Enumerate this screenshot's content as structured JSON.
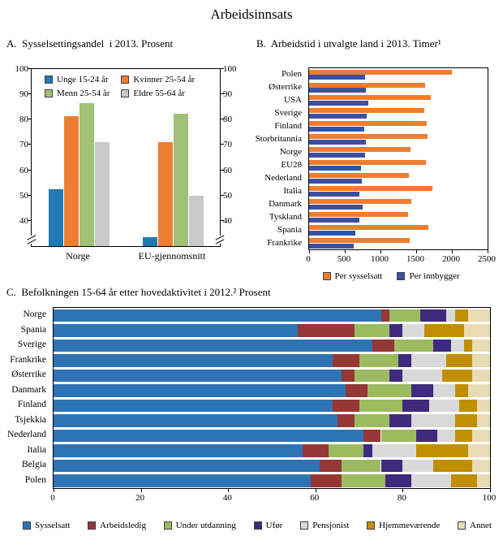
{
  "figure": {
    "title": "Arbeidsinnsats"
  },
  "chart_data": [
    {
      "id": "A",
      "type": "bar",
      "title": "A.  Sysselsettingsandel  i 2013. Prosent",
      "categories": [
        "Norge",
        "EU-gjennomsnitt"
      ],
      "series": [
        {
          "name": "Unge 15-24 år",
          "color": "#1F7AB6",
          "values": [
            52.5,
            33.5
          ]
        },
        {
          "name": "Kvinner 25-54 år",
          "color": "#ED7D31",
          "values": [
            81.5,
            71.0
          ]
        },
        {
          "name": "Menn 25-54 år",
          "color": "#A1C176",
          "values": [
            86.5,
            82.5
          ]
        },
        {
          "name": "Eldre 55-64 år",
          "color": "#C9C9C9",
          "values": [
            71.0,
            50.0
          ]
        }
      ],
      "ylim": [
        30,
        100
      ],
      "yticks": [
        40,
        50,
        60,
        70,
        80,
        90,
        100
      ],
      "axis_break": true,
      "grid": false,
      "legend_position": "inside-top"
    },
    {
      "id": "B",
      "type": "hbar",
      "title": "B.  Arbeidstid i utvalgte land i 2013. Timer¹",
      "categories": [
        "Polen",
        "Østerrike",
        "USA",
        "Sverige",
        "Finland",
        "Storbritannia",
        "Norge",
        "EU28",
        "Nederland",
        "Italia",
        "Danmark",
        "Tyskland",
        "Spania",
        "Frankrike"
      ],
      "series": [
        {
          "name": "Per sysselsatt",
          "color": "#ED7D31",
          "values": [
            2000,
            1630,
            1710,
            1610,
            1650,
            1660,
            1420,
            1640,
            1400,
            1730,
            1430,
            1390,
            1670,
            1410
          ]
        },
        {
          "name": "Per innbygger",
          "color": "#3C4FA1",
          "values": [
            780,
            790,
            830,
            810,
            770,
            800,
            780,
            730,
            740,
            700,
            750,
            710,
            650,
            630
          ]
        }
      ],
      "xlim": [
        0,
        2500
      ],
      "xticks": [
        0,
        500,
        1000,
        1500,
        2000,
        2500
      ],
      "grid": false,
      "legend_position": "bottom"
    },
    {
      "id": "C",
      "type": "stacked-hbar",
      "title": "C.  Befolkningen 15-64 år etter hovedaktivitet i 2012.² Prosent",
      "categories": [
        "Norge",
        "Spania",
        "Sverige",
        "Frankrike",
        "Østerrike",
        "Danmark",
        "Finland",
        "Tsjekkia",
        "Nederland",
        "Italia",
        "Belgia",
        "Polen"
      ],
      "series": [
        {
          "name": "Sysselsatt",
          "color": "#2E74B5",
          "values": [
            75,
            56,
            73,
            64,
            66,
            67,
            64,
            65,
            71,
            57,
            61,
            59
          ]
        },
        {
          "name": "Arbeidsledig",
          "color": "#953735",
          "values": [
            2,
            13,
            5,
            6,
            3,
            5,
            6,
            4,
            4,
            6,
            5,
            7
          ]
        },
        {
          "name": "Under utdanning",
          "color": "#9CBB61",
          "values": [
            7,
            8,
            9,
            9,
            8,
            10,
            10,
            8,
            8,
            8,
            9,
            10
          ]
        },
        {
          "name": "Ufør",
          "color": "#3F2A7E",
          "values": [
            6,
            3,
            4,
            3,
            3,
            5,
            6,
            5,
            5,
            2,
            5,
            6
          ]
        },
        {
          "name": "Pensjonist",
          "color": "#D9D9D9",
          "values": [
            2,
            5,
            3,
            8,
            9,
            5,
            7,
            10,
            4,
            10,
            7,
            9
          ]
        },
        {
          "name": "Hjemmeværende",
          "color": "#BF8F00",
          "values": [
            3,
            9,
            2,
            6,
            7,
            3,
            4,
            5,
            4,
            12,
            9,
            6
          ]
        },
        {
          "name": "Annet",
          "color": "#E8DCB5",
          "values": [
            5,
            6,
            4,
            4,
            4,
            5,
            3,
            3,
            4,
            5,
            4,
            3
          ]
        }
      ],
      "xlim": [
        0,
        100
      ],
      "xticks": [
        0,
        20,
        40,
        60,
        80,
        100
      ],
      "grid": false,
      "legend_position": "bottom"
    }
  ]
}
